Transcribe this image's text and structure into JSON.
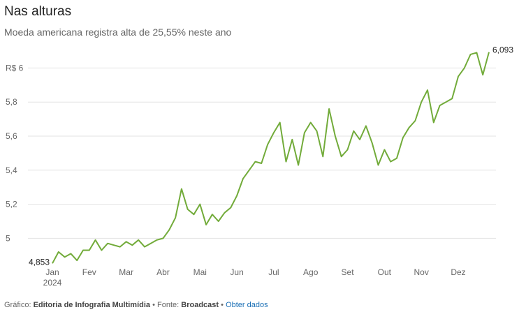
{
  "chart_data": {
    "type": "line",
    "title": "Nas alturas",
    "subtitle": "Moeda americana registra alta de 25,55% neste ano",
    "categories": [
      "Jan",
      null,
      null,
      null,
      null,
      null,
      "Fev",
      null,
      null,
      null,
      null,
      null,
      "Mar",
      null,
      null,
      null,
      null,
      null,
      "Abr",
      null,
      null,
      null,
      null,
      null,
      "Mai",
      null,
      null,
      null,
      null,
      null,
      "Jun",
      null,
      null,
      null,
      null,
      null,
      "Jul",
      null,
      null,
      null,
      null,
      null,
      "Ago",
      null,
      null,
      null,
      null,
      null,
      "Set",
      null,
      null,
      null,
      null,
      null,
      "Out",
      null,
      null,
      null,
      null,
      null,
      "Nov",
      null,
      null,
      null,
      null,
      null,
      "Dez",
      null,
      null,
      null,
      null,
      null
    ],
    "x_sublabel": "2024",
    "series": [
      {
        "color": "#72ab3a",
        "values": [
          4.853,
          4.92,
          4.89,
          4.91,
          4.87,
          4.93,
          4.93,
          4.99,
          4.93,
          4.97,
          4.96,
          4.95,
          4.98,
          4.96,
          4.99,
          4.95,
          4.97,
          4.99,
          5.0,
          5.05,
          5.12,
          5.29,
          5.17,
          5.14,
          5.2,
          5.08,
          5.14,
          5.1,
          5.15,
          5.18,
          5.25,
          5.35,
          5.4,
          5.45,
          5.44,
          5.55,
          5.62,
          5.68,
          5.45,
          5.58,
          5.43,
          5.62,
          5.68,
          5.63,
          5.48,
          5.76,
          5.6,
          5.48,
          5.52,
          5.63,
          5.58,
          5.66,
          5.56,
          5.43,
          5.52,
          5.45,
          5.47,
          5.59,
          5.65,
          5.69,
          5.8,
          5.87,
          5.68,
          5.78,
          5.8,
          5.82,
          5.95,
          6.0,
          6.08,
          6.09,
          5.96,
          6.093
        ],
        "value_labels": [
          "4,853",
          null,
          null,
          null,
          null,
          null,
          null,
          null,
          null,
          null,
          null,
          null,
          null,
          null,
          null,
          null,
          null,
          null,
          null,
          null,
          null,
          null,
          null,
          null,
          null,
          null,
          null,
          null,
          null,
          null,
          null,
          null,
          null,
          null,
          null,
          null,
          null,
          null,
          null,
          null,
          null,
          null,
          null,
          null,
          null,
          null,
          null,
          null,
          null,
          null,
          null,
          null,
          null,
          null,
          null,
          null,
          null,
          null,
          null,
          null,
          null,
          null,
          null,
          null,
          null,
          null,
          null,
          null,
          null,
          null,
          null,
          "6,093"
        ]
      }
    ],
    "ylim": [
      4.85,
      6.1
    ],
    "yticks": [
      5,
      {
        "value": 5.2,
        "label": "5,2"
      },
      {
        "value": 5.4,
        "label": "5,4"
      },
      {
        "value": 5.6,
        "label": "5,6"
      },
      {
        "value": 5.8,
        "label": "5,8"
      },
      {
        "value": 6,
        "label": "R$ 6"
      }
    ],
    "grid": true
  },
  "footer": {
    "credit_label": "Gráfico:",
    "credit": "Editoria de Infografia Multimídia",
    "separator": "•",
    "source_label": "Fonte:",
    "source": "Broadcast",
    "link": "Obter dados"
  }
}
